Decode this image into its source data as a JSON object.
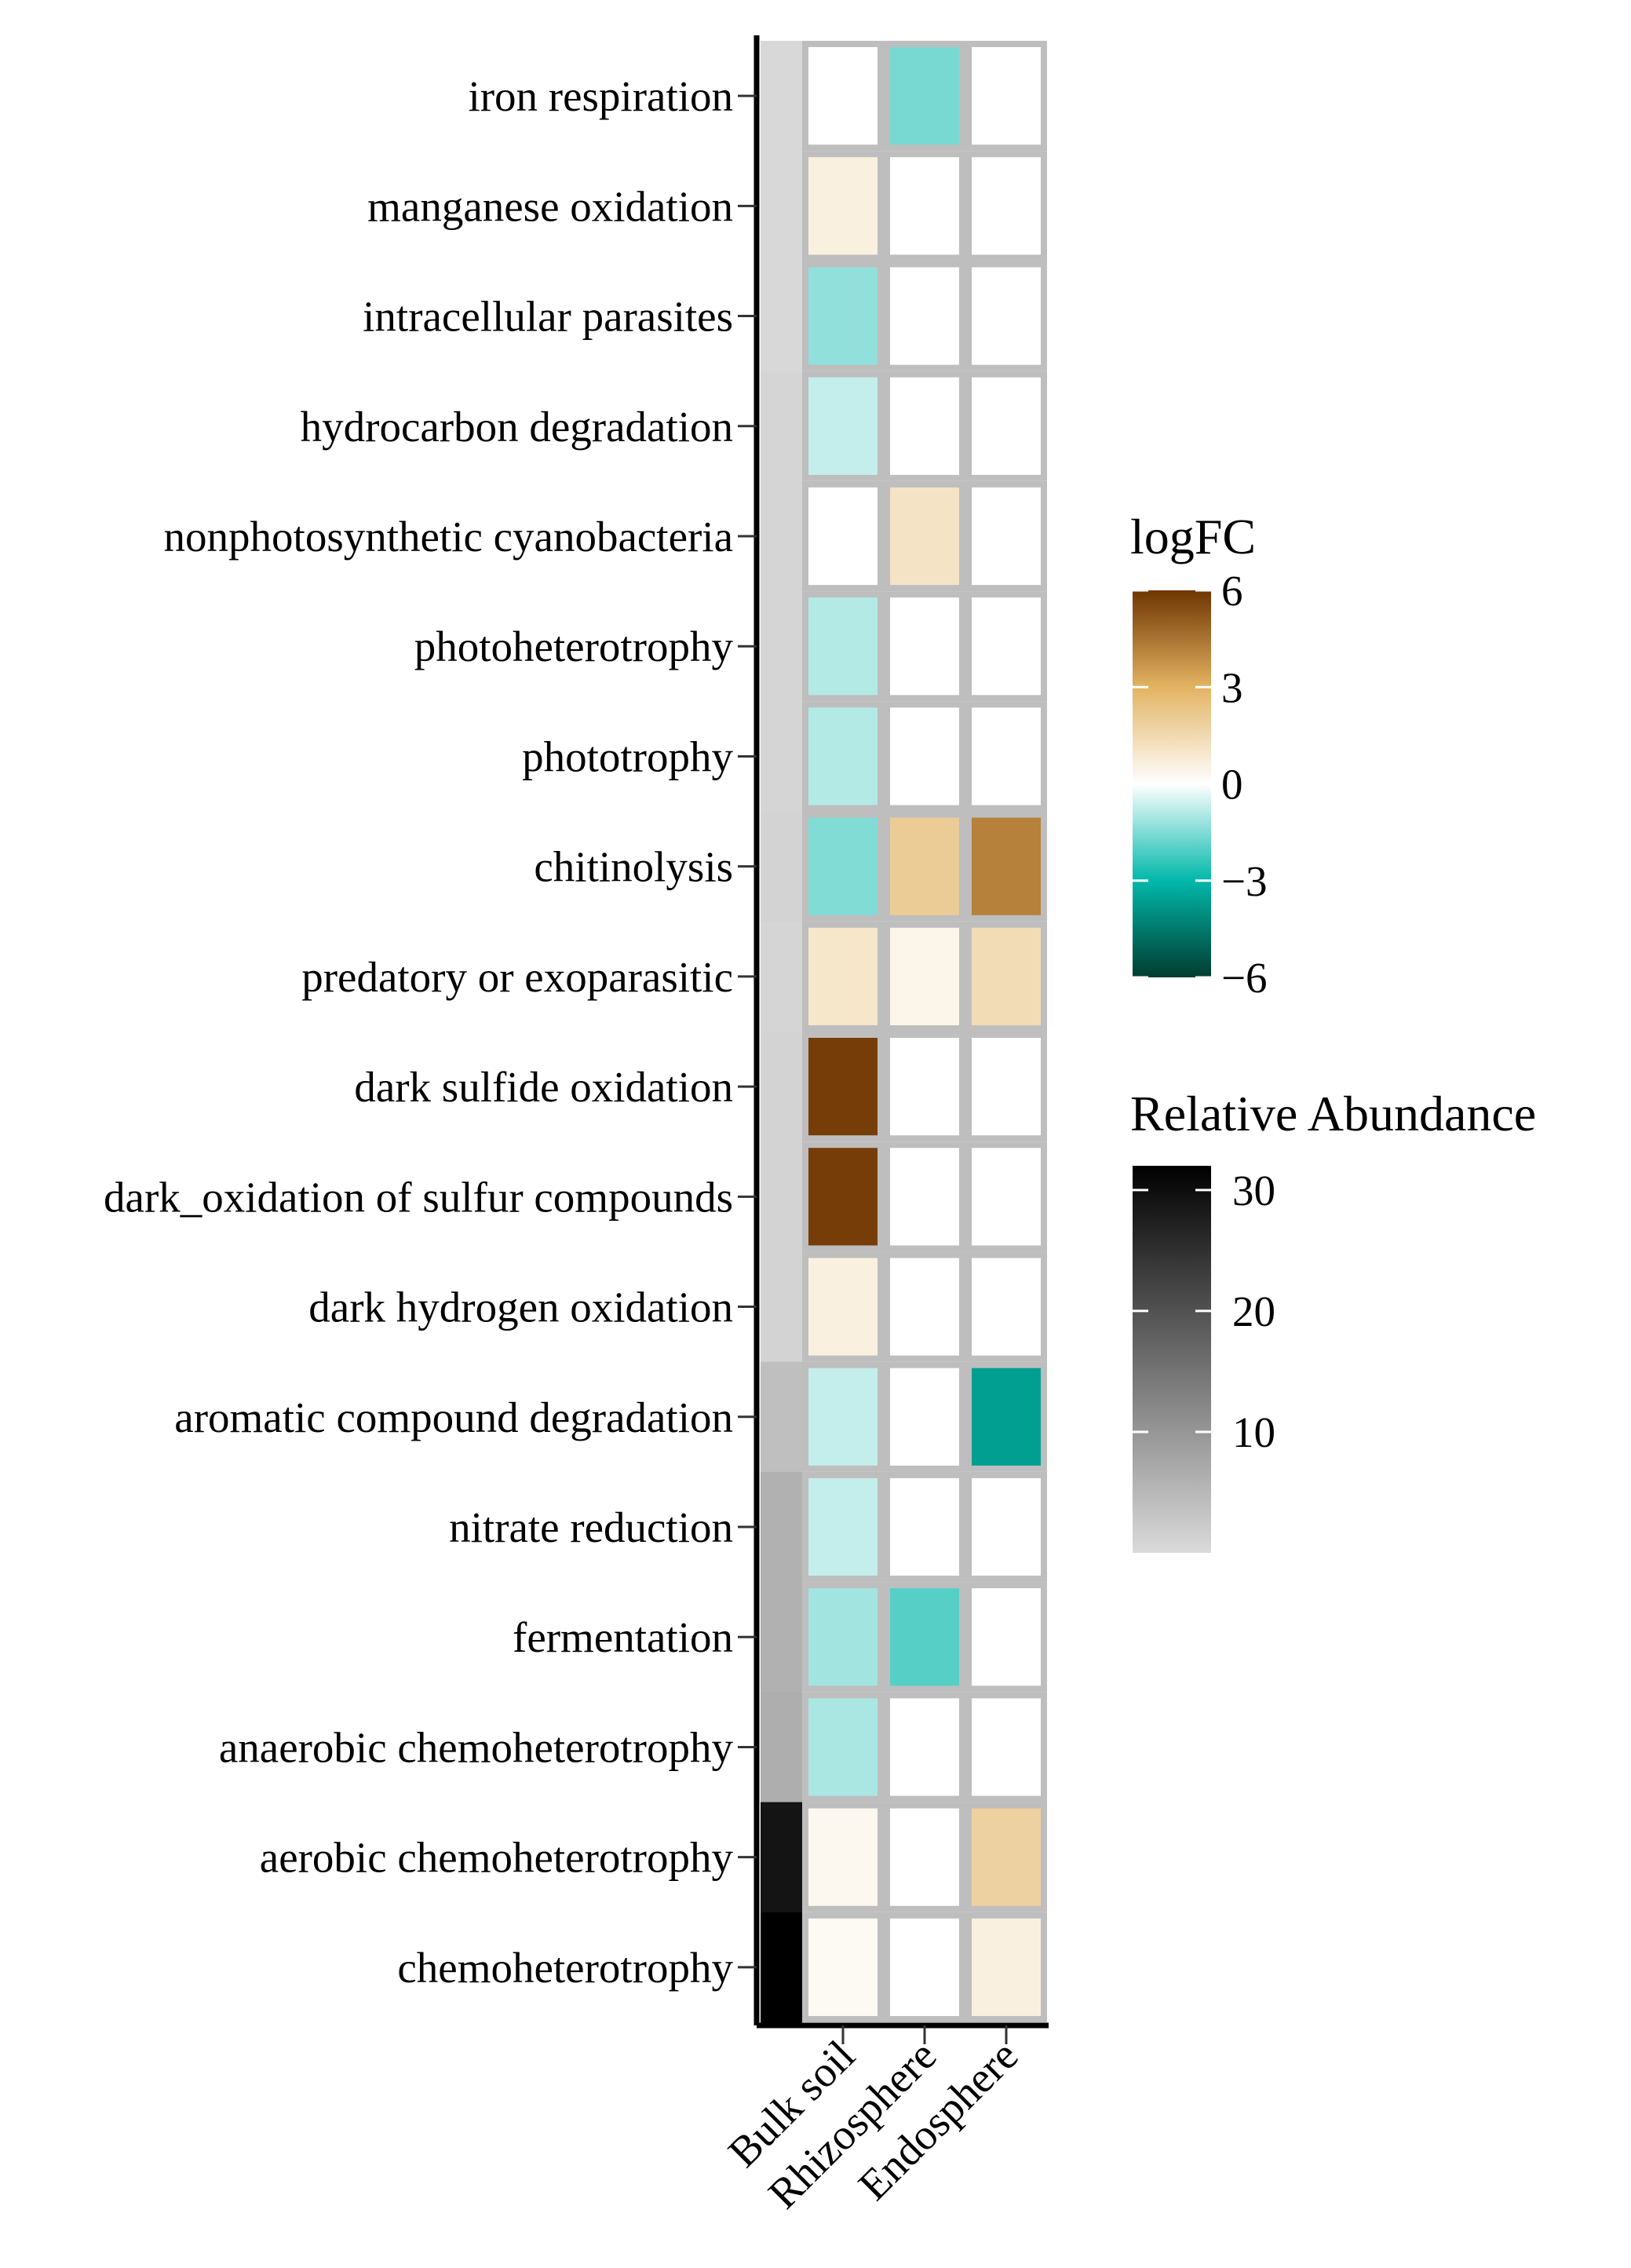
{
  "chart_data": {
    "type": "heatmap",
    "title": "",
    "xlabel": "",
    "ylabel": "",
    "columns": [
      "Bulk soil",
      "Rhizosphere",
      "Endosphere"
    ],
    "rows": [
      {
        "label": "iron respiration",
        "abundance": 0.3,
        "values": [
          0,
          -1.6,
          0
        ]
      },
      {
        "label": "manganese oxidation ",
        "abundance": 0.3,
        "values": [
          0.6,
          0,
          0
        ]
      },
      {
        "label": "intracellular parasites ",
        "abundance": 0.3,
        "values": [
          -1.3,
          0,
          0
        ]
      },
      {
        "label": "hydrocarbon degradation",
        "abundance": 0.8,
        "values": [
          -0.7,
          0,
          0
        ]
      },
      {
        "label": "nonphotosynthetic cyanobacteria",
        "abundance": 0.8,
        "values": [
          0,
          1.1,
          0
        ]
      },
      {
        "label": "photoheterotrophy",
        "abundance": 0.8,
        "values": [
          -0.9,
          0,
          0
        ]
      },
      {
        "label": "phototrophy",
        "abundance": 0.8,
        "values": [
          -0.9,
          0,
          0
        ]
      },
      {
        "label": "chitinolysis",
        "abundance": 1.0,
        "values": [
          -1.5,
          2.0,
          4.2
        ]
      },
      {
        "label": "predatory or exoparasitic",
        "abundance": 0.8,
        "values": [
          1.0,
          0.4,
          1.4
        ]
      },
      {
        "label": "dark sulfide oxidation",
        "abundance": 1.0,
        "values": [
          5.8,
          0,
          0
        ]
      },
      {
        "label": "dark_oxidation of sulfur compounds",
        "abundance": 1.0,
        "values": [
          5.8,
          0,
          0
        ]
      },
      {
        "label": "dark hydrogen oxidation",
        "abundance": 1.0,
        "values": [
          0.6,
          0,
          0
        ]
      },
      {
        "label": "aromatic compound degradation",
        "abundance": 4.0,
        "values": [
          -0.7,
          0,
          -3.6
        ]
      },
      {
        "label": "nitrate reduction",
        "abundance": 6.0,
        "values": [
          -0.7,
          0,
          0
        ]
      },
      {
        "label": "fermentation",
        "abundance": 6.0,
        "values": [
          -1.1,
          -2.0,
          0
        ]
      },
      {
        "label": "anaerobic chemoheterotrophy",
        "abundance": 6.5,
        "values": [
          -1.0,
          0,
          0
        ]
      },
      {
        "label": "aerobic chemoheterotrophy",
        "abundance": 29.0,
        "values": [
          0.3,
          0,
          1.8
        ]
      },
      {
        "label": "chemoheterotrophy",
        "abundance": 32.0,
        "values": [
          0.2,
          0,
          0.6
        ]
      }
    ],
    "legends": {
      "logfc": {
        "title": "logFC",
        "ticks": [
          {
            "label": "6",
            "value": 6
          },
          {
            "label": "3",
            "value": 3
          },
          {
            "label": "0",
            "value": 0
          },
          {
            "label": "−3",
            "value": -3
          },
          {
            "label": "−6",
            "value": -6
          }
        ],
        "range": [
          -6,
          6
        ],
        "stops": [
          {
            "value": -6,
            "color": "#003d30"
          },
          {
            "value": -3,
            "color": "#01b8ab"
          },
          {
            "value": 0,
            "color": "#ffffff"
          },
          {
            "value": 3,
            "color": "#e3b361"
          },
          {
            "value": 6,
            "color": "#6f3503"
          }
        ]
      },
      "abundance": {
        "title": "Relative Abundance",
        "ticks": [
          {
            "label": "30",
            "value": 30
          },
          {
            "label": "20",
            "value": 20
          },
          {
            "label": "10",
            "value": 10
          }
        ],
        "range": [
          0,
          32
        ],
        "color_low": "#dadada",
        "color_high": "#000000"
      }
    },
    "grid_color": "#bebebe"
  }
}
